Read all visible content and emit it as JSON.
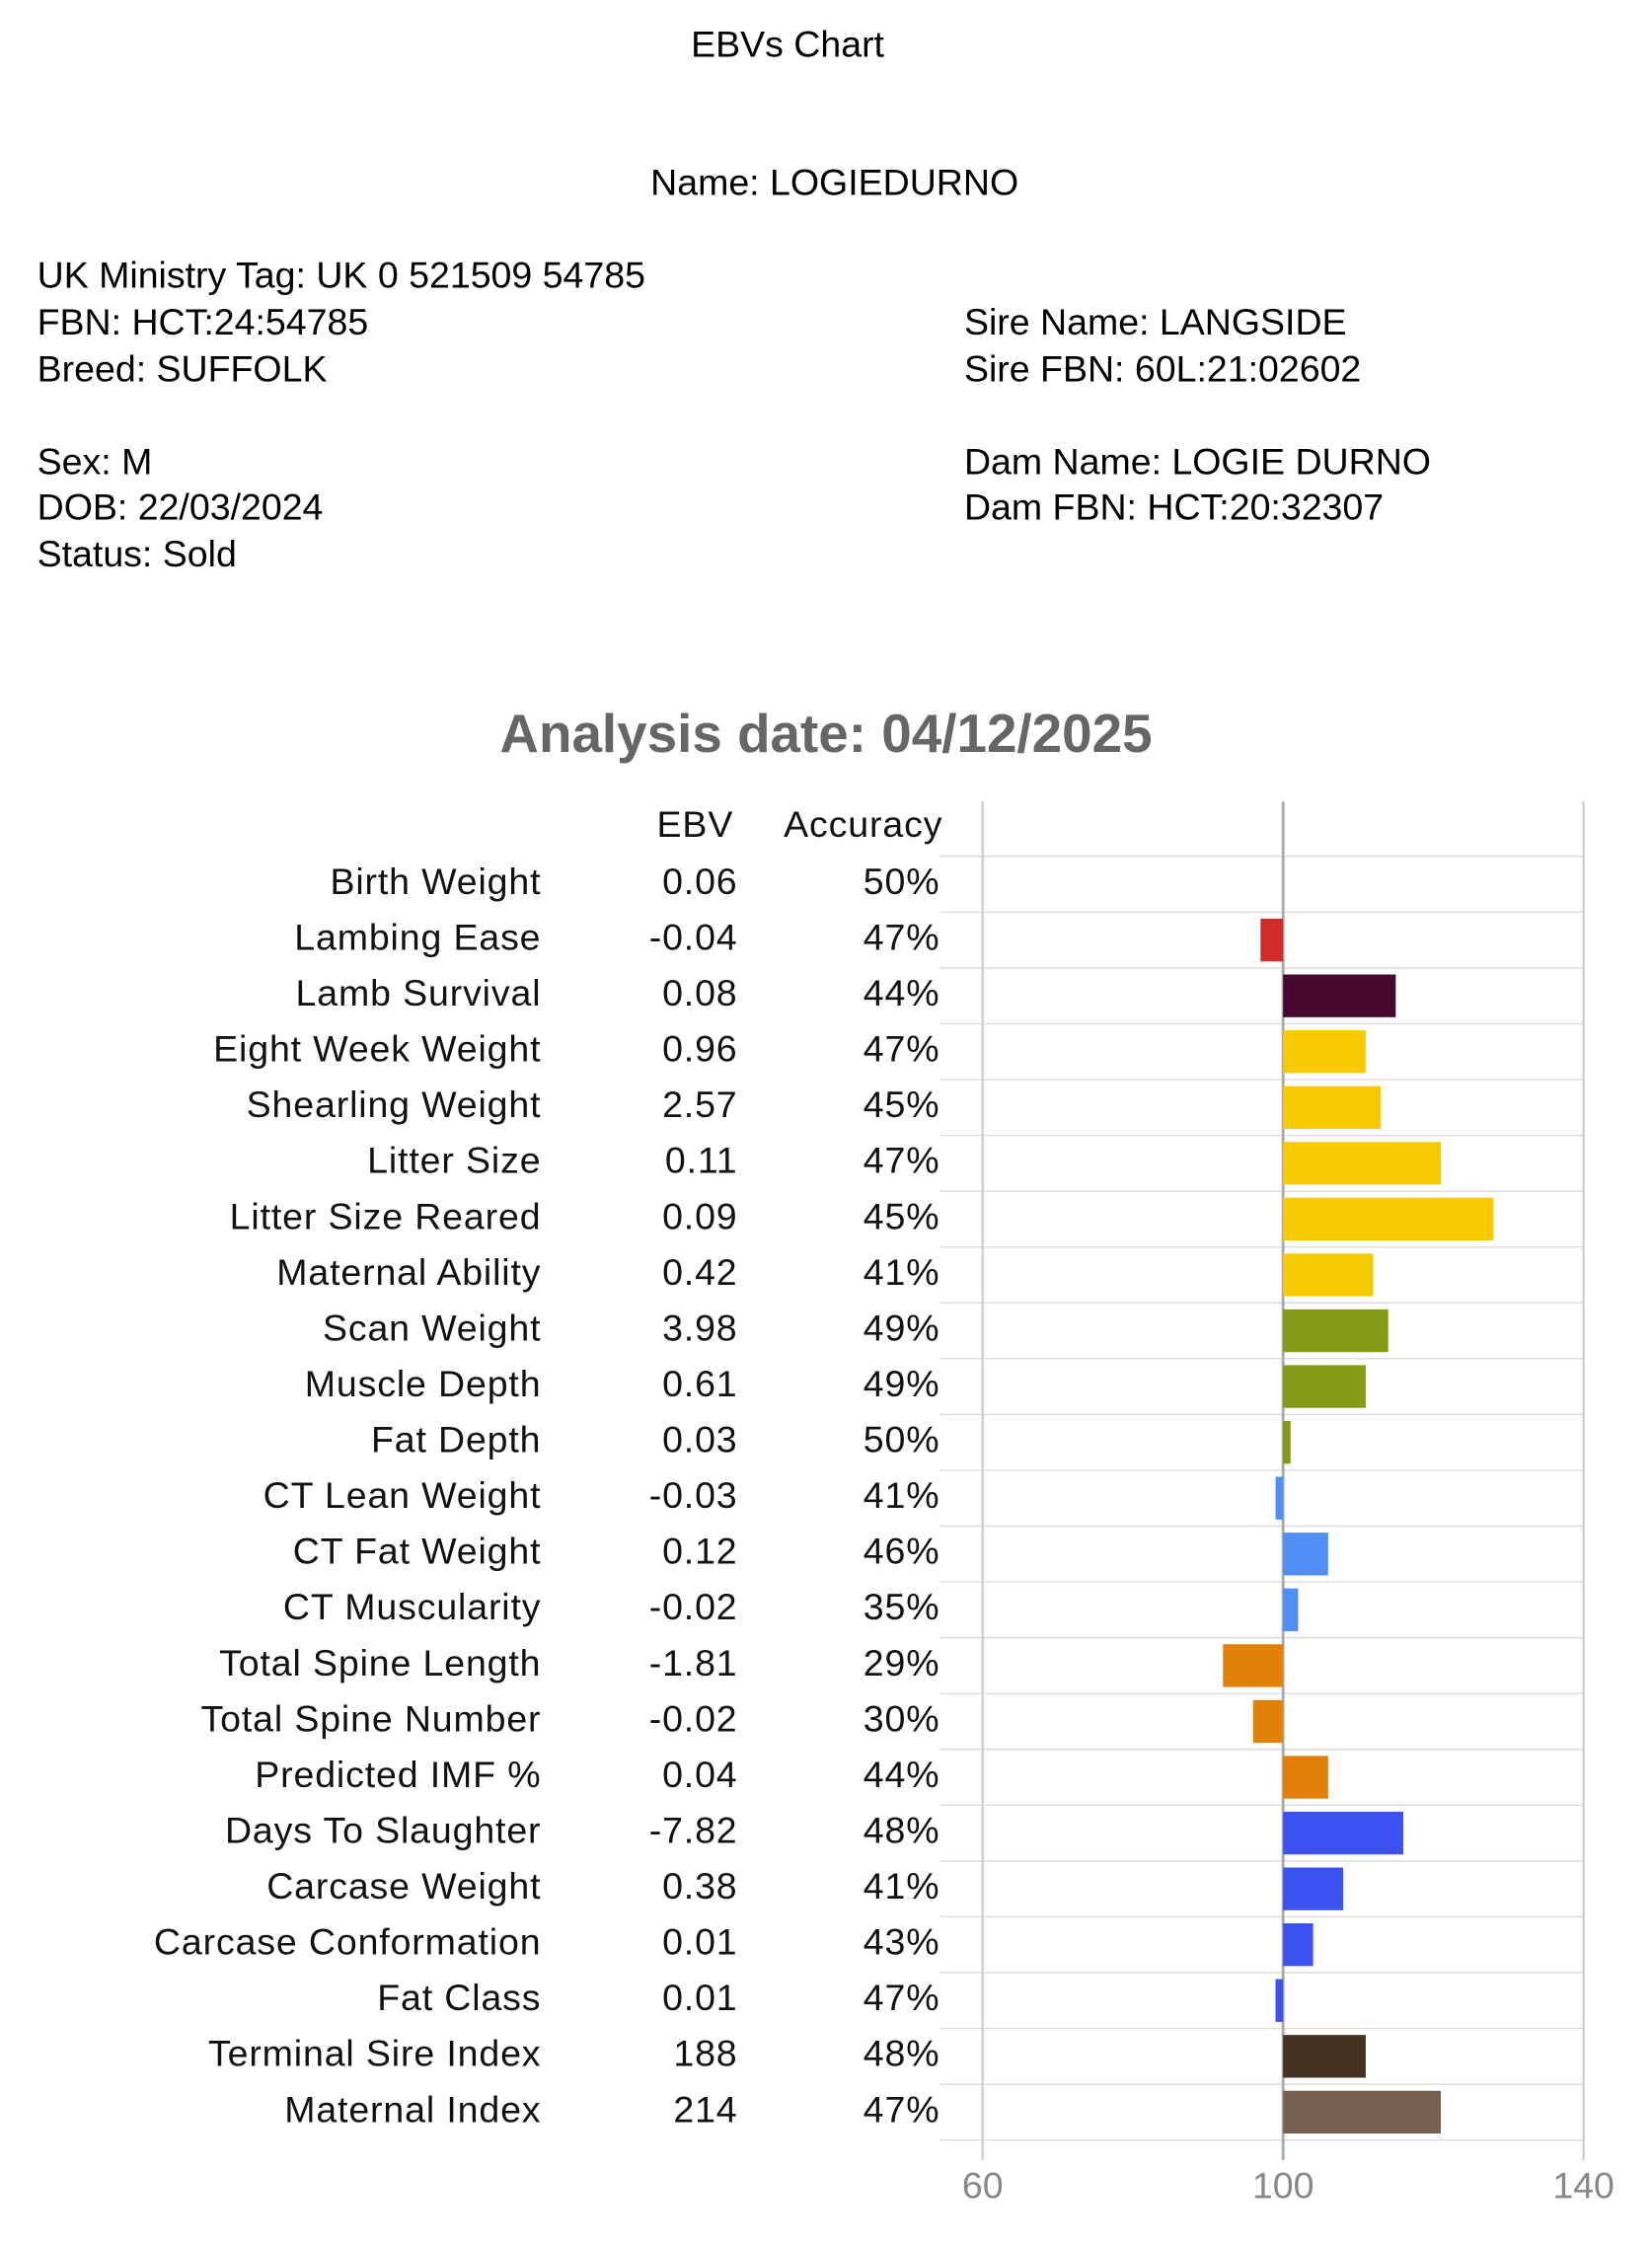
{
  "document": {
    "heading": "EBVs Chart",
    "name": "Name: LOGIEDURNO",
    "left": [
      "UK Ministry Tag: UK 0 521509 54785",
      "FBN: HCT:24:54785",
      "Breed: SUFFOLK",
      "Sex: M",
      "DOB: 22/03/2024",
      "Status: Sold"
    ],
    "right": [
      "Sire Name: LANGSIDE",
      "Sire FBN: 60L:21:02602",
      "Dam Name: LOGIE DURNO",
      "Dam FBN: HCT:20:32307"
    ]
  },
  "chart_data": {
    "type": "bar",
    "orientation": "horizontal",
    "title": "Analysis date: 04/12/2025",
    "ebv_header": "EBV",
    "accuracy_header": "Accuracy",
    "categories": [
      "Birth Weight",
      "Lambing Ease",
      "Lamb Survival",
      "Eight Week Weight",
      "Shearling Weight",
      "Litter Size",
      "Litter Size Reared",
      "Maternal Ability",
      "Scan Weight",
      "Muscle Depth",
      "Fat Depth",
      "CT Lean Weight",
      "CT Fat Weight",
      "CT Muscularity",
      "Total Spine Length",
      "Total Spine Number",
      "Predicted IMF %",
      "Days To Slaughter",
      "Carcase Weight",
      "Carcase Conformation",
      "Fat Class",
      "Terminal Sire Index",
      "Maternal Index"
    ],
    "ebv": [
      0.06,
      -0.04,
      0.08,
      0.96,
      2.57,
      0.11,
      0.09,
      0.42,
      3.98,
      0.61,
      0.03,
      -0.03,
      0.12,
      -0.02,
      -1.81,
      -0.02,
      0.04,
      -7.82,
      0.38,
      0.01,
      0.01,
      188,
      214
    ],
    "accuracy": [
      "50%",
      "47%",
      "44%",
      "47%",
      "45%",
      "47%",
      "45%",
      "41%",
      "49%",
      "49%",
      "50%",
      "41%",
      "46%",
      "35%",
      "29%",
      "30%",
      "44%",
      "48%",
      "41%",
      "43%",
      "47%",
      "48%",
      "47%"
    ],
    "values": [
      100,
      97,
      115,
      111,
      113,
      121,
      128,
      112,
      114,
      111,
      101,
      99,
      106,
      102,
      92,
      96,
      106,
      116,
      108,
      104,
      99,
      111,
      121
    ],
    "colors": [
      "#d42a2a",
      "#d42a2a",
      "#46082e",
      "#f7c900",
      "#f7c900",
      "#f7c900",
      "#f7c900",
      "#f7c900",
      "#879a17",
      "#879a17",
      "#879a17",
      "#4f8ff5",
      "#4f8ff5",
      "#4f8ff5",
      "#e2800a",
      "#e2800a",
      "#e2800a",
      "#3b52f0",
      "#3b52f0",
      "#3b52f0",
      "#3b52f0",
      "#43301f",
      "#76604f"
    ],
    "baseline": 100,
    "xlim": [
      60,
      140
    ],
    "xticks": [
      60,
      100,
      140
    ],
    "grid": true
  }
}
